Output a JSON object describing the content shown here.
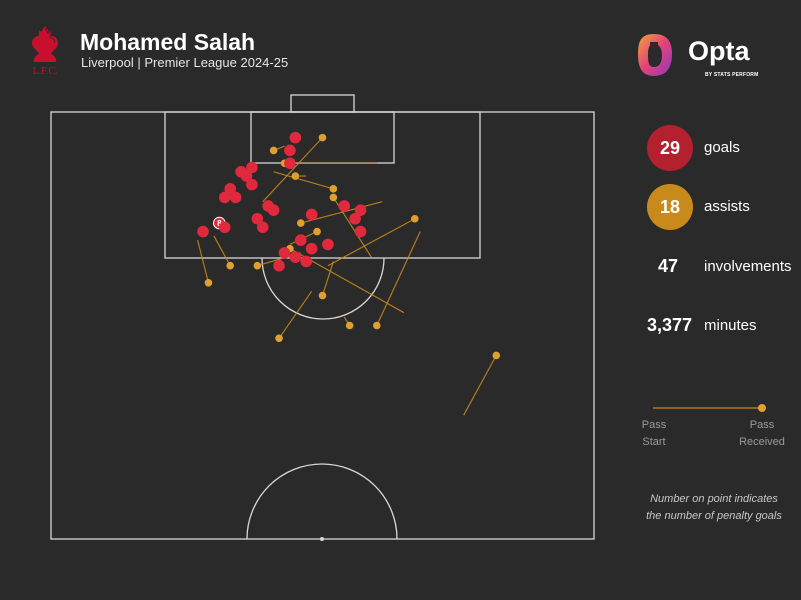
{
  "header": {
    "player_name": "Mohamed Salah",
    "subtitle": "Liverpool | Premier League 2024-25",
    "crest_text": "L.F.C."
  },
  "branding": {
    "opta": "Opta",
    "opta_sub": "BY STATS PERFORM"
  },
  "stats": {
    "goals": {
      "value": "29",
      "label": "goals",
      "color": "#b3212e"
    },
    "assists": {
      "value": "18",
      "label": "assists",
      "color": "#c98a1c"
    },
    "involvements": {
      "value": "47",
      "label": "involvements"
    },
    "minutes": {
      "value": "3,377",
      "label": "minutes"
    }
  },
  "legend": {
    "start_label_1": "Pass",
    "start_label_2": "Start",
    "end_label_1": "Pass",
    "end_label_2": "Received",
    "color": "#e0a030"
  },
  "note": {
    "line1": "Number on point indicates",
    "line2": "the number of penalty goals"
  },
  "chart_data": {
    "type": "scatter",
    "description_axes": "pitch coordinates, x = across width (0-100), y = distance from goal line (0-100)",
    "goals": [
      {
        "x": 45,
        "y": 6
      },
      {
        "x": 44,
        "y": 9
      },
      {
        "x": 37,
        "y": 13
      },
      {
        "x": 44,
        "y": 12
      },
      {
        "x": 35,
        "y": 14
      },
      {
        "x": 36,
        "y": 15
      },
      {
        "x": 37,
        "y": 17
      },
      {
        "x": 33,
        "y": 18
      },
      {
        "x": 34,
        "y": 20
      },
      {
        "x": 32,
        "y": 20
      },
      {
        "x": 41,
        "y": 23
      },
      {
        "x": 54,
        "y": 22
      },
      {
        "x": 57,
        "y": 23
      },
      {
        "x": 48,
        "y": 24
      },
      {
        "x": 56,
        "y": 25
      },
      {
        "x": 31,
        "y": 26,
        "label": "8"
      },
      {
        "x": 28,
        "y": 28
      },
      {
        "x": 32,
        "y": 27
      },
      {
        "x": 57,
        "y": 28
      },
      {
        "x": 46,
        "y": 30
      },
      {
        "x": 51,
        "y": 31
      },
      {
        "x": 48,
        "y": 32
      },
      {
        "x": 45,
        "y": 34
      },
      {
        "x": 47,
        "y": 35
      },
      {
        "x": 43,
        "y": 33
      },
      {
        "x": 42,
        "y": 36
      },
      {
        "x": 39,
        "y": 27
      },
      {
        "x": 38,
        "y": 25
      },
      {
        "x": 40,
        "y": 22
      }
    ],
    "assists": [
      {
        "x": 51,
        "y": 36,
        "end_x": 67,
        "end_y": 25
      },
      {
        "x": 39,
        "y": 21,
        "end_x": 50,
        "end_y": 6
      },
      {
        "x": 48,
        "y": 42,
        "end_x": 42,
        "end_y": 53
      },
      {
        "x": 44,
        "y": 31,
        "end_x": 49,
        "end_y": 28
      },
      {
        "x": 46,
        "y": 33,
        "end_x": 38,
        "end_y": 36
      },
      {
        "x": 54,
        "y": 48,
        "end_x": 55,
        "end_y": 50
      },
      {
        "x": 76,
        "y": 71,
        "end_x": 82,
        "end_y": 57
      },
      {
        "x": 30,
        "y": 29,
        "end_x": 33,
        "end_y": 36
      },
      {
        "x": 27,
        "y": 30,
        "end_x": 29,
        "end_y": 40
      },
      {
        "x": 52,
        "y": 35,
        "end_x": 50,
        "end_y": 43
      },
      {
        "x": 59,
        "y": 34,
        "end_x": 52,
        "end_y": 20
      },
      {
        "x": 61,
        "y": 21,
        "end_x": 46,
        "end_y": 26
      },
      {
        "x": 68,
        "y": 28,
        "end_x": 60,
        "end_y": 50
      },
      {
        "x": 60,
        "y": 12,
        "end_x": 43,
        "end_y": 12
      },
      {
        "x": 65,
        "y": 47,
        "end_x": 44,
        "end_y": 32
      },
      {
        "x": 41,
        "y": 14,
        "end_x": 52,
        "end_y": 18
      },
      {
        "x": 47,
        "y": 15,
        "end_x": 45,
        "end_y": 15
      },
      {
        "x": 43,
        "y": 8,
        "end_x": 41,
        "end_y": 9
      }
    ]
  }
}
